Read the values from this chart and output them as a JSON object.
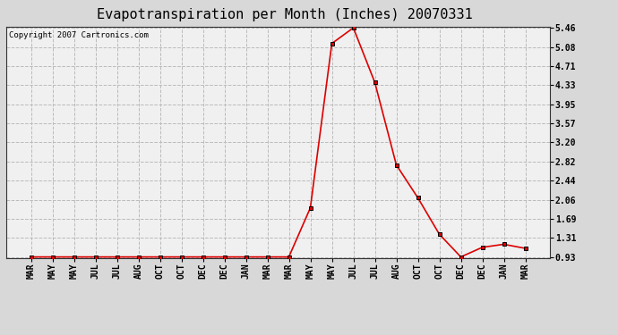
{
  "title": "Evapotranspiration per Month (Inches) 20070331",
  "copyright": "Copyright 2007 Cartronics.com",
  "x_labels": [
    "MAR",
    "MAY",
    "MAY",
    "JUL",
    "JUL",
    "AUG",
    "OCT",
    "OCT",
    "DEC",
    "DEC",
    "JAN",
    "MAR",
    "MAR",
    "MAY",
    "MAY",
    "JUL",
    "JUL",
    "AUG",
    "OCT",
    "OCT",
    "DEC",
    "DEC",
    "JAN",
    "MAR"
  ],
  "y_values": [
    0.93,
    0.93,
    0.93,
    0.93,
    0.93,
    0.93,
    0.93,
    0.93,
    0.93,
    0.93,
    0.93,
    0.93,
    0.93,
    1.9,
    5.15,
    5.46,
    4.38,
    2.75,
    2.1,
    1.38,
    0.93,
    1.12,
    1.18,
    1.1
  ],
  "y_ticks": [
    0.93,
    1.31,
    1.69,
    2.06,
    2.44,
    2.82,
    3.2,
    3.57,
    3.95,
    4.33,
    4.71,
    5.08,
    5.46
  ],
  "y_min": 0.93,
  "y_max": 5.46,
  "line_color": "#dd0000",
  "marker_color": "#000000",
  "marker_face": "#dd0000",
  "marker_size": 3,
  "bg_color": "#d8d8d8",
  "plot_bg_color": "#f0f0f0",
  "grid_color": "#bbbbbb",
  "title_fontsize": 11,
  "copyright_fontsize": 6.5,
  "tick_fontsize": 7
}
